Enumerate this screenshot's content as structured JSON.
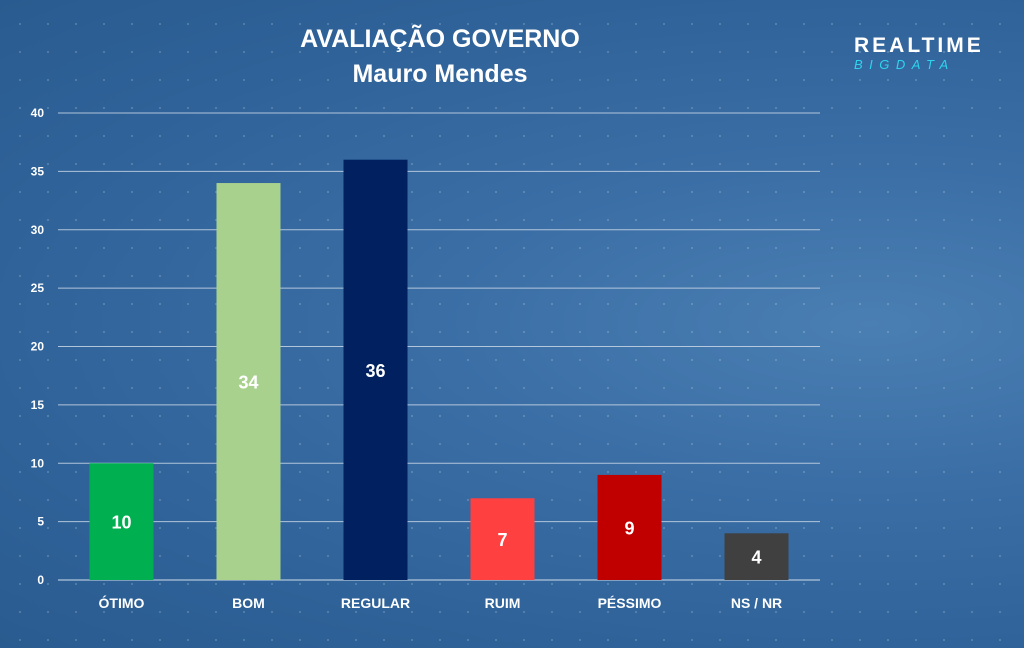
{
  "colors": {
    "grid": "#c9d6e6",
    "axis_text": "#ffffff",
    "label_text": "#ffffff",
    "logo_primary": "#ffffff",
    "logo_accent": "#2fd3f0"
  },
  "logo": {
    "line1": "REALTIME",
    "line2": "BIGDATA"
  },
  "chart_data": {
    "type": "bar",
    "title": "AVALIAÇÃO GOVERNO",
    "subtitle": "Mauro Mendes",
    "categories": [
      "ÓTIMO",
      "BOM",
      "REGULAR",
      "RUIM",
      "PÉSSIMO",
      "NS / NR"
    ],
    "values": [
      10,
      34,
      36,
      7,
      9,
      4
    ],
    "bar_colors": [
      "#00b050",
      "#a9d18e",
      "#002060",
      "#ff4040",
      "#c00000",
      "#404040"
    ],
    "ylim": [
      0,
      40
    ],
    "yticks": [
      0,
      5,
      10,
      15,
      20,
      25,
      30,
      35,
      40
    ],
    "grid": true,
    "legend": "none",
    "data_labels": true
  }
}
